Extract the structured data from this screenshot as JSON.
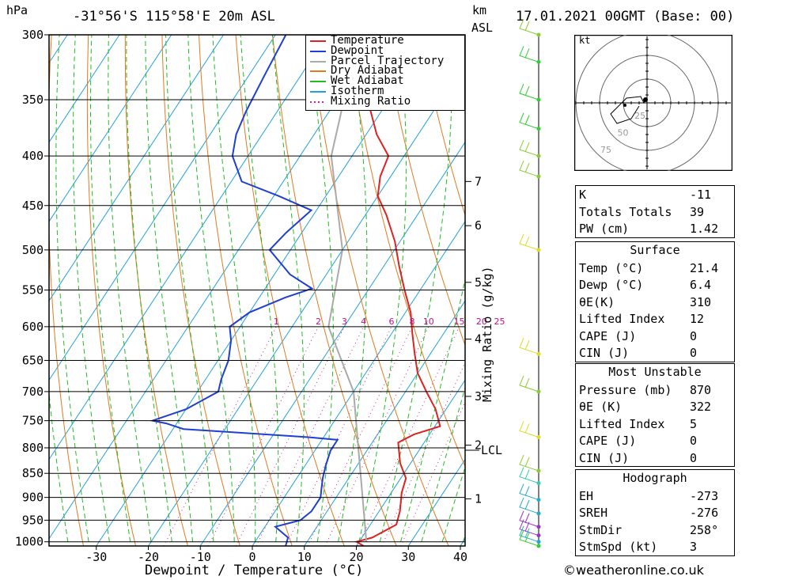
{
  "header": {
    "pressure_unit": "hPa",
    "location": "-31°56'S 115°58'E 20m ASL",
    "km_label": "km",
    "asl_label": "ASL",
    "datetime": "17.01.2021 00GMT (Base: 00)"
  },
  "chart_data": {
    "type": "line",
    "xlabel": "Dewpoint / Temperature (°C)",
    "ylabel": "hPa",
    "mixing_ratio_axis_label": "Mixing Ratio (g/kg)",
    "xlim": [
      -40,
      40
    ],
    "ylim": [
      1010,
      300
    ],
    "x_ticks": [
      -30,
      -20,
      -10,
      0,
      10,
      20,
      30,
      40
    ],
    "pressure_levels": [
      300,
      350,
      400,
      450,
      500,
      550,
      600,
      650,
      700,
      750,
      800,
      850,
      900,
      950,
      1000
    ],
    "km_ticks": [
      {
        "label": "7",
        "p": 425
      },
      {
        "label": "6",
        "p": 472
      },
      {
        "label": "5",
        "p": 540
      },
      {
        "label": "4",
        "p": 618
      },
      {
        "label": "3",
        "p": 708
      },
      {
        "label": "2",
        "p": 795
      },
      {
        "label": "1",
        "p": 903
      }
    ],
    "lcl": {
      "label": "LCL",
      "p": 800
    },
    "mixing_ratio_labels": [
      "1",
      "2",
      "3",
      "4",
      "6",
      "8",
      "10",
      "15",
      "20",
      "25"
    ],
    "legend": [
      "Temperature",
      "Dewpoint",
      "Parcel Trajectory",
      "Dry Adiabat",
      "Wet Adiabat",
      "Isotherm",
      "Mixing Ratio"
    ],
    "series": [
      {
        "name": "Temperature",
        "color": "#dd2222",
        "points": [
          [
            21.4,
            1010
          ],
          [
            19.5,
            1000
          ],
          [
            22,
            990
          ],
          [
            25,
            960
          ],
          [
            24,
            930
          ],
          [
            22,
            890
          ],
          [
            21,
            860
          ],
          [
            18,
            830
          ],
          [
            15,
            790
          ],
          [
            17,
            775
          ],
          [
            21,
            760
          ],
          [
            18,
            730
          ],
          [
            14,
            700
          ],
          [
            10,
            670
          ],
          [
            7,
            640
          ],
          [
            4,
            610
          ],
          [
            1,
            580
          ],
          [
            -3,
            550
          ],
          [
            -7,
            520
          ],
          [
            -11,
            490
          ],
          [
            -16,
            460
          ],
          [
            -20,
            440
          ],
          [
            -22,
            420
          ],
          [
            -23,
            400
          ],
          [
            -28,
            380
          ],
          [
            -32,
            360
          ],
          [
            -36,
            340
          ],
          [
            -40,
            320
          ],
          [
            -44,
            300
          ]
        ]
      },
      {
        "name": "Dewpoint",
        "color": "#1f3fd0",
        "points": [
          [
            6.4,
            1010
          ],
          [
            5.8,
            990
          ],
          [
            2,
            965
          ],
          [
            6,
            950
          ],
          [
            7,
            930
          ],
          [
            7,
            900
          ],
          [
            6,
            880
          ],
          [
            5,
            860
          ],
          [
            4,
            835
          ],
          [
            3,
            805
          ],
          [
            3,
            785
          ],
          [
            -3,
            780
          ],
          [
            -28,
            765
          ],
          [
            -32,
            755
          ],
          [
            -35,
            750
          ],
          [
            -30,
            730
          ],
          [
            -26,
            700
          ],
          [
            -27,
            680
          ],
          [
            -28,
            650
          ],
          [
            -30,
            620
          ],
          [
            -32,
            600
          ],
          [
            -30,
            580
          ],
          [
            -25,
            560
          ],
          [
            -21,
            548
          ],
          [
            -27,
            530
          ],
          [
            -34,
            500
          ],
          [
            -33,
            480
          ],
          [
            -31,
            455
          ],
          [
            -39,
            440
          ],
          [
            -48,
            425
          ],
          [
            -53,
            400
          ],
          [
            -55,
            380
          ],
          [
            -56,
            360
          ],
          [
            -57,
            330
          ],
          [
            -58,
            300
          ]
        ]
      },
      {
        "name": "Parcel Trajectory",
        "color": "#aaaaaa",
        "points": [
          [
            21.4,
            1000
          ],
          [
            8,
            800
          ],
          [
            0,
            700
          ],
          [
            -13,
            600
          ],
          [
            -20,
            500
          ],
          [
            -34,
            400
          ],
          [
            -44,
            300
          ]
        ]
      }
    ]
  },
  "hodograph": {
    "unit_label": "kt",
    "ring_labels": [
      "25",
      "50",
      "75"
    ]
  },
  "indices": [
    {
      "label": "K",
      "value": "-11"
    },
    {
      "label": "Totals Totals",
      "value": "39"
    },
    {
      "label": "PW (cm)",
      "value": "1.42"
    }
  ],
  "surface": {
    "title": "Surface",
    "rows": [
      {
        "label": "Temp (°C)",
        "value": "21.4"
      },
      {
        "label": "Dewp (°C)",
        "value": "6.4"
      },
      {
        "label": "θE(K)",
        "value": "310"
      },
      {
        "label": "Lifted Index",
        "value": "12"
      },
      {
        "label": "CAPE (J)",
        "value": "0"
      },
      {
        "label": "CIN (J)",
        "value": "0"
      }
    ]
  },
  "most_unstable": {
    "title": "Most Unstable",
    "rows": [
      {
        "label": "Pressure (mb)",
        "value": "870"
      },
      {
        "label": "θE (K)",
        "value": "322"
      },
      {
        "label": "Lifted Index",
        "value": "5"
      },
      {
        "label": "CAPE (J)",
        "value": "0"
      },
      {
        "label": "CIN (J)",
        "value": "0"
      }
    ]
  },
  "hodograph_table": {
    "title": "Hodograph",
    "rows": [
      {
        "label": "EH",
        "value": "-273"
      },
      {
        "label": "SREH",
        "value": "-276"
      },
      {
        "label": "StmDir",
        "value": "258°"
      },
      {
        "label": "StmSpd (kt)",
        "value": "3"
      }
    ]
  },
  "footer": "©weatheronline.co.uk"
}
